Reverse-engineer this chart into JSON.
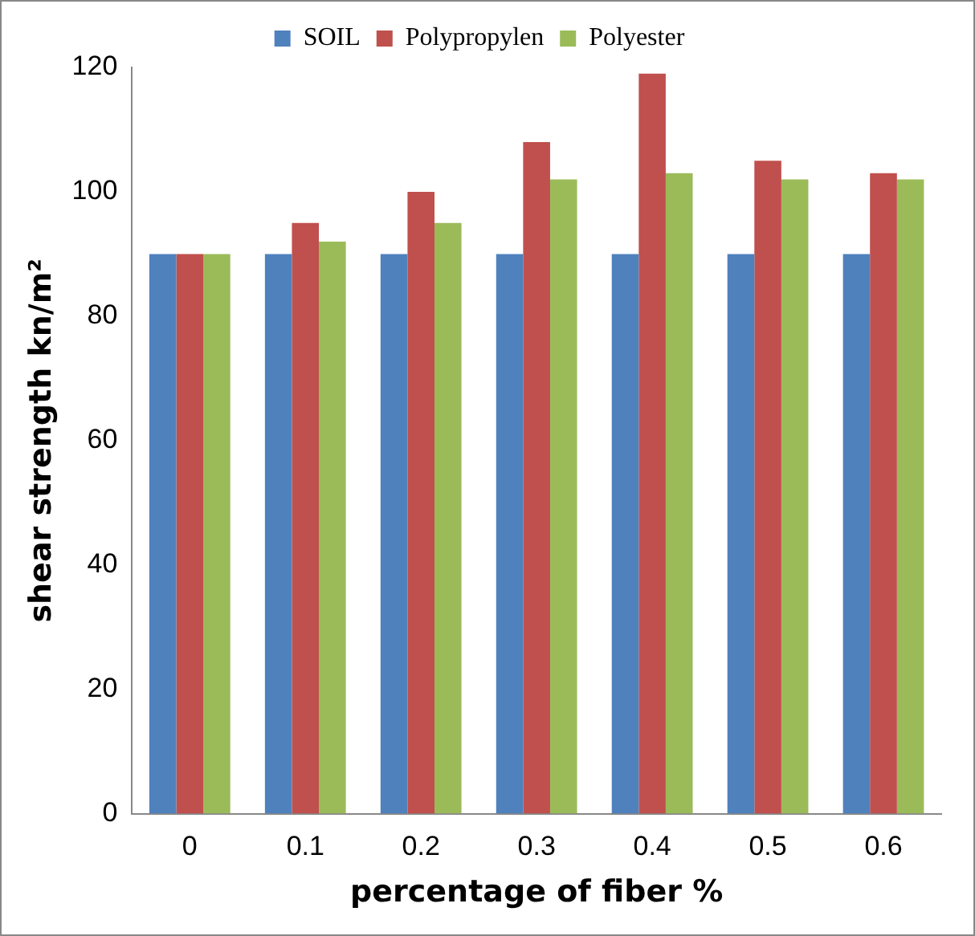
{
  "chart_data": {
    "type": "bar",
    "xlabel": "percentage of fiber %",
    "ylabel": "shear strength kn/m²",
    "categories": [
      "0",
      "0.1",
      "0.2",
      "0.3",
      "0.4",
      "0.5",
      "0.6"
    ],
    "series": [
      {
        "name": "SOIL",
        "color": "#4f81bd",
        "values": [
          90,
          90,
          90,
          90,
          90,
          90,
          90
        ]
      },
      {
        "name": "Polypropylen",
        "color": "#c0504d",
        "values": [
          90,
          95,
          100,
          108,
          119,
          105,
          103
        ]
      },
      {
        "name": "Polyester",
        "color": "#9bbb59",
        "values": [
          90,
          92,
          95,
          102,
          103,
          102,
          102
        ]
      }
    ],
    "ylim": [
      0,
      120
    ],
    "yticks": [
      0,
      20,
      40,
      60,
      80,
      100,
      120
    ],
    "grid": false,
    "legend": "top"
  }
}
